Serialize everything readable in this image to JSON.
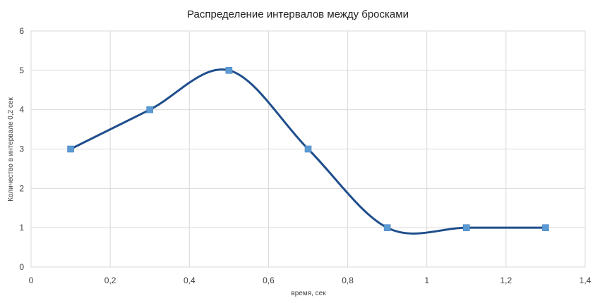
{
  "chart_data": {
    "type": "line",
    "title": "Распределение интервалов между бросками",
    "xlabel": "время, сек",
    "ylabel": "Количество в интервале 0,2 сек",
    "xlim": [
      0,
      1.4
    ],
    "ylim": [
      0,
      6
    ],
    "x_ticks": [
      "0",
      "0,2",
      "0,4",
      "0,6",
      "0,8",
      "1",
      "1,2",
      "1,4"
    ],
    "y_ticks": [
      "0",
      "1",
      "2",
      "3",
      "4",
      "5",
      "6"
    ],
    "grid": true,
    "smooth": true,
    "legend": "none",
    "series": [
      {
        "x": [
          0.1,
          0.3,
          0.5,
          0.7,
          0.9,
          1.1,
          1.3
        ],
        "y": [
          3,
          4,
          5,
          3,
          1,
          1,
          1
        ],
        "line_color": "#1F4E8C",
        "marker_color": "#5B9BD5"
      }
    ]
  }
}
